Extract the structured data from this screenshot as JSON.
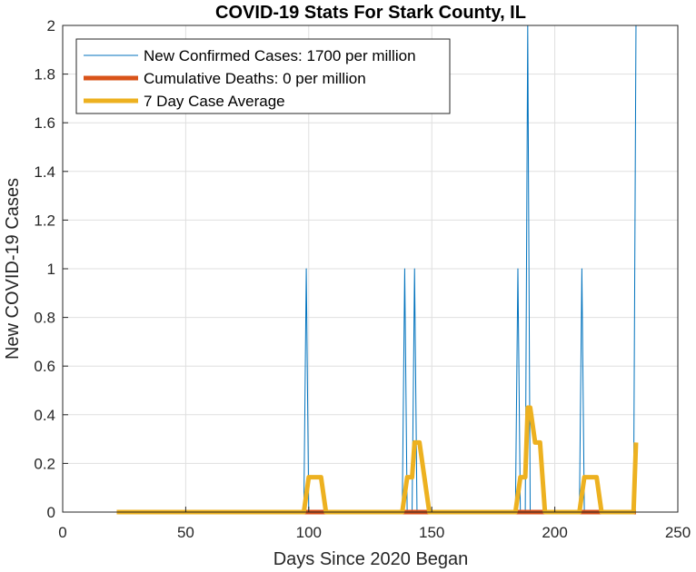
{
  "chart_data": {
    "type": "line",
    "title": "COVID-19 Stats For Stark County, IL",
    "xlabel": "Days Since 2020 Began",
    "ylabel": "New COVID-19 Cases",
    "xlim": [
      0,
      250
    ],
    "ylim": [
      0,
      2
    ],
    "xticks": [
      "0",
      "50",
      "100",
      "150",
      "200",
      "250"
    ],
    "yticks": [
      "0",
      "0.2",
      "0.4",
      "0.6",
      "0.8",
      "1",
      "1.2",
      "1.4",
      "1.6",
      "1.8",
      "2"
    ],
    "grid": true,
    "legend_position": "top-left",
    "series": [
      {
        "name": "New Confirmed Cases: 1700 per million",
        "color": "#0072BD",
        "x": [
          22,
          98,
          99,
          100,
          138,
          139,
          140,
          142,
          143,
          144,
          184,
          185,
          186,
          188,
          189,
          190,
          210,
          211,
          212,
          232,
          233
        ],
        "y": [
          0,
          0,
          1,
          0,
          0,
          1,
          0,
          0,
          1,
          0,
          0,
          1,
          0,
          0,
          2,
          0,
          0,
          1,
          0,
          0,
          2
        ]
      },
      {
        "name": "Cumulative Deaths: 0 per million",
        "color": "#D95319",
        "x": [
          22,
          233
        ],
        "y": [
          0,
          0
        ]
      },
      {
        "name": "7 Day Case Average",
        "color": "#EDB120",
        "x": [
          22,
          98,
          100,
          105,
          107,
          138,
          140,
          142,
          143,
          145,
          147,
          149,
          184,
          186,
          188,
          189,
          190,
          192,
          194,
          196,
          210,
          212,
          217,
          219,
          232,
          233
        ],
        "y": [
          0,
          0,
          0.143,
          0.143,
          0,
          0,
          0.143,
          0.143,
          0.286,
          0.286,
          0.143,
          0,
          0,
          0.143,
          0.143,
          0.429,
          0.429,
          0.286,
          0.286,
          0,
          0,
          0.143,
          0.143,
          0,
          0,
          0.286
        ]
      }
    ]
  }
}
